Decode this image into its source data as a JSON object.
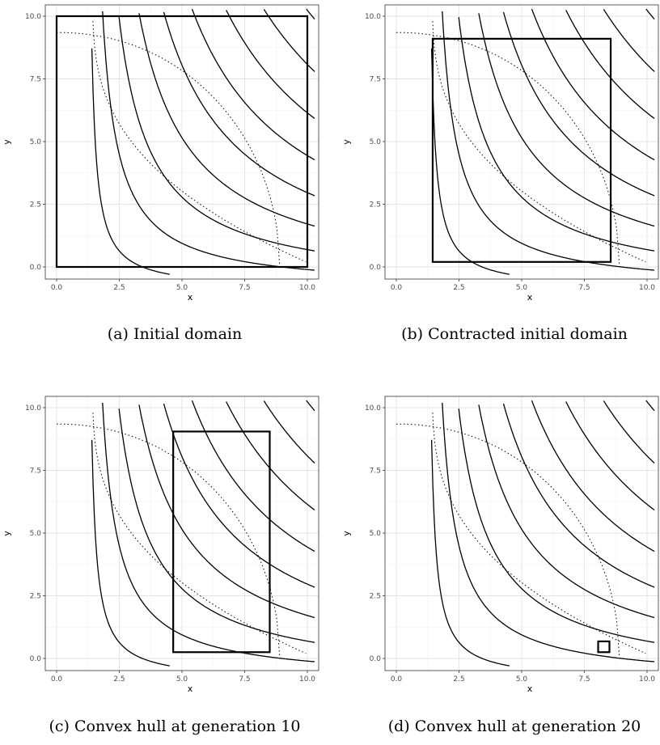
{
  "chart_data": [
    {
      "type": "contour",
      "caption": "(a) Initial domain",
      "xlabel": "x",
      "ylabel": "y",
      "xlim": [
        0,
        10
      ],
      "ylim": [
        0,
        10
      ],
      "xticks": [
        "0.0",
        "2.5",
        "5.0",
        "7.5",
        "10.0"
      ],
      "yticks": [
        "0.0",
        "2.5",
        "5.0",
        "7.5",
        "10.0"
      ],
      "grid": true,
      "box": {
        "x0": 0,
        "x1": 10,
        "y0": 0,
        "y1": 10
      }
    },
    {
      "type": "contour",
      "caption": "(b) Contracted initial domain",
      "xlabel": "x",
      "ylabel": "y",
      "xlim": [
        0,
        10
      ],
      "ylim": [
        0,
        10
      ],
      "xticks": [
        "0.0",
        "2.5",
        "5.0",
        "7.5",
        "10.0"
      ],
      "yticks": [
        "0.0",
        "2.5",
        "5.0",
        "7.5",
        "10.0"
      ],
      "grid": true,
      "box": {
        "x0": 1.45,
        "x1": 8.55,
        "y0": 0.2,
        "y1": 9.1
      }
    },
    {
      "type": "contour",
      "caption": "(c) Convex hull at generation 10",
      "xlabel": "x",
      "ylabel": "y",
      "xlim": [
        0,
        10
      ],
      "ylim": [
        0,
        10
      ],
      "xticks": [
        "0.0",
        "2.5",
        "5.0",
        "7.5",
        "10.0"
      ],
      "yticks": [
        "0.0",
        "2.5",
        "5.0",
        "7.5",
        "10.0"
      ],
      "grid": true,
      "box": {
        "x0": 4.65,
        "x1": 8.5,
        "y0": 0.25,
        "y1": 9.05
      }
    },
    {
      "type": "contour",
      "caption": "(d) Convex hull at generation 20",
      "xlabel": "x",
      "ylabel": "y",
      "xlim": [
        0,
        10
      ],
      "ylim": [
        0,
        10
      ],
      "xticks": [
        "0.0",
        "2.5",
        "5.0",
        "7.5",
        "10.0"
      ],
      "yticks": [
        "0.0",
        "2.5",
        "5.0",
        "7.5",
        "10.0"
      ],
      "grid": true,
      "box": {
        "x0": 8.05,
        "x1": 8.5,
        "y0": 0.25,
        "y1": 0.68
      }
    }
  ]
}
